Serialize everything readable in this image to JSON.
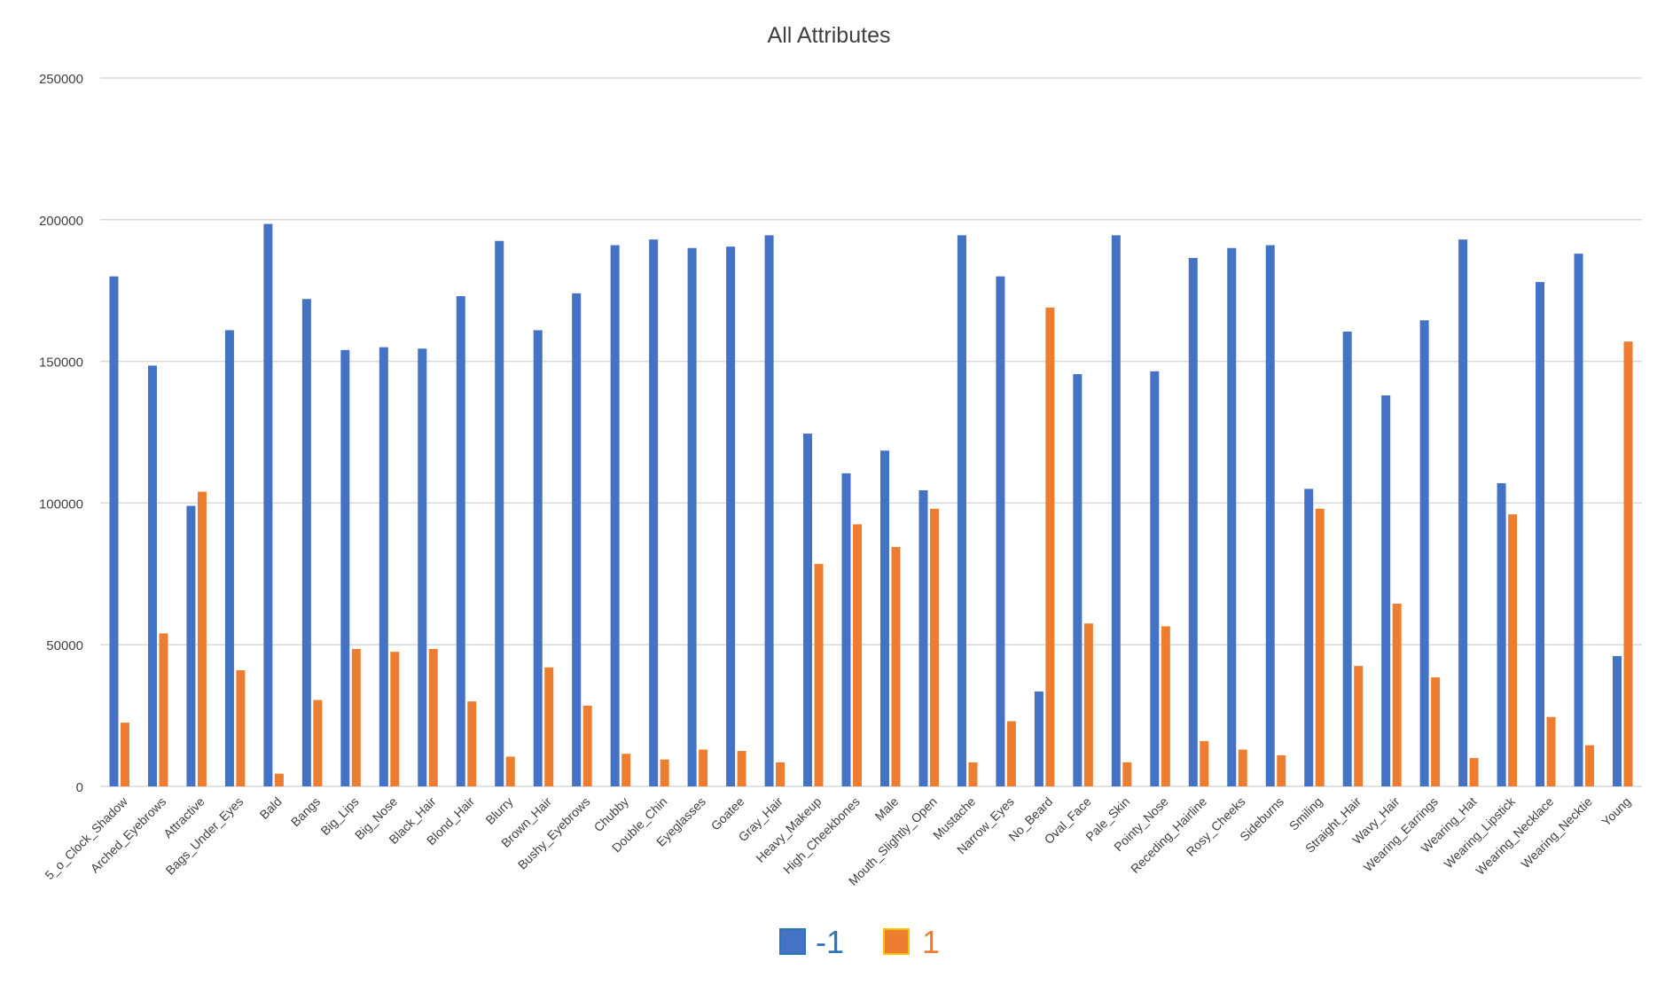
{
  "chart_data": {
    "type": "bar",
    "title": "All Attributes",
    "xlabel": "",
    "ylabel": "",
    "ylim": [
      0,
      250000
    ],
    "yticks": [
      0,
      50000,
      100000,
      150000,
      200000,
      250000
    ],
    "ytick_labels": [
      "0",
      "50000",
      "100000",
      "150000",
      "200000",
      "250000"
    ],
    "grid": true,
    "legend_position": "bottom",
    "categories": [
      "5_o_Clock_Shadow",
      "Arched_Eyebrows",
      "Attractive",
      "Bags_Under_Eyes",
      "Bald",
      "Bangs",
      "Big_Lips",
      "Big_Nose",
      "Black_Hair",
      "Blond_Hair",
      "Blurry",
      "Brown_Hair",
      "Bushy_Eyebrows",
      "Chubby",
      "Double_Chin",
      "Eyeglasses",
      "Goatee",
      "Gray_Hair",
      "Heavy_Makeup",
      "High_Cheekbones",
      "Male",
      "Mouth_Slightly_Open",
      "Mustache",
      "Narrow_Eyes",
      "No_Beard",
      "Oval_Face",
      "Pale_Skin",
      "Pointy_Nose",
      "Receding_Hairline",
      "Rosy_Cheeks",
      "Sideburns",
      "Smiling",
      "Straight_Hair",
      "Wavy_Hair",
      "Wearing_Earrings",
      "Wearing_Hat",
      "Wearing_Lipstick",
      "Wearing_Necklace",
      "Wearing_Necktie",
      "Young"
    ],
    "series": [
      {
        "name": "-1",
        "color": "#4472C4",
        "values": [
          180000,
          148500,
          99000,
          161000,
          198500,
          172000,
          154000,
          155000,
          154500,
          173000,
          192500,
          161000,
          174000,
          191000,
          193000,
          190000,
          190500,
          194500,
          124500,
          110500,
          118500,
          104500,
          194500,
          180000,
          33500,
          145500,
          194500,
          146500,
          186500,
          190000,
          191000,
          105000,
          160500,
          138000,
          164500,
          193000,
          107000,
          178000,
          188000,
          46000
        ]
      },
      {
        "name": "1",
        "color": "#ED7D31",
        "values": [
          22500,
          54000,
          104000,
          41000,
          4500,
          30500,
          48500,
          47500,
          48500,
          30000,
          10500,
          42000,
          28500,
          11500,
          9500,
          13000,
          12500,
          8500,
          78500,
          92500,
          84500,
          98000,
          8500,
          23000,
          169000,
          57500,
          8500,
          56500,
          16000,
          13000,
          11000,
          98000,
          42500,
          64500,
          38500,
          10000,
          96000,
          24500,
          14500,
          157000
        ]
      }
    ]
  }
}
